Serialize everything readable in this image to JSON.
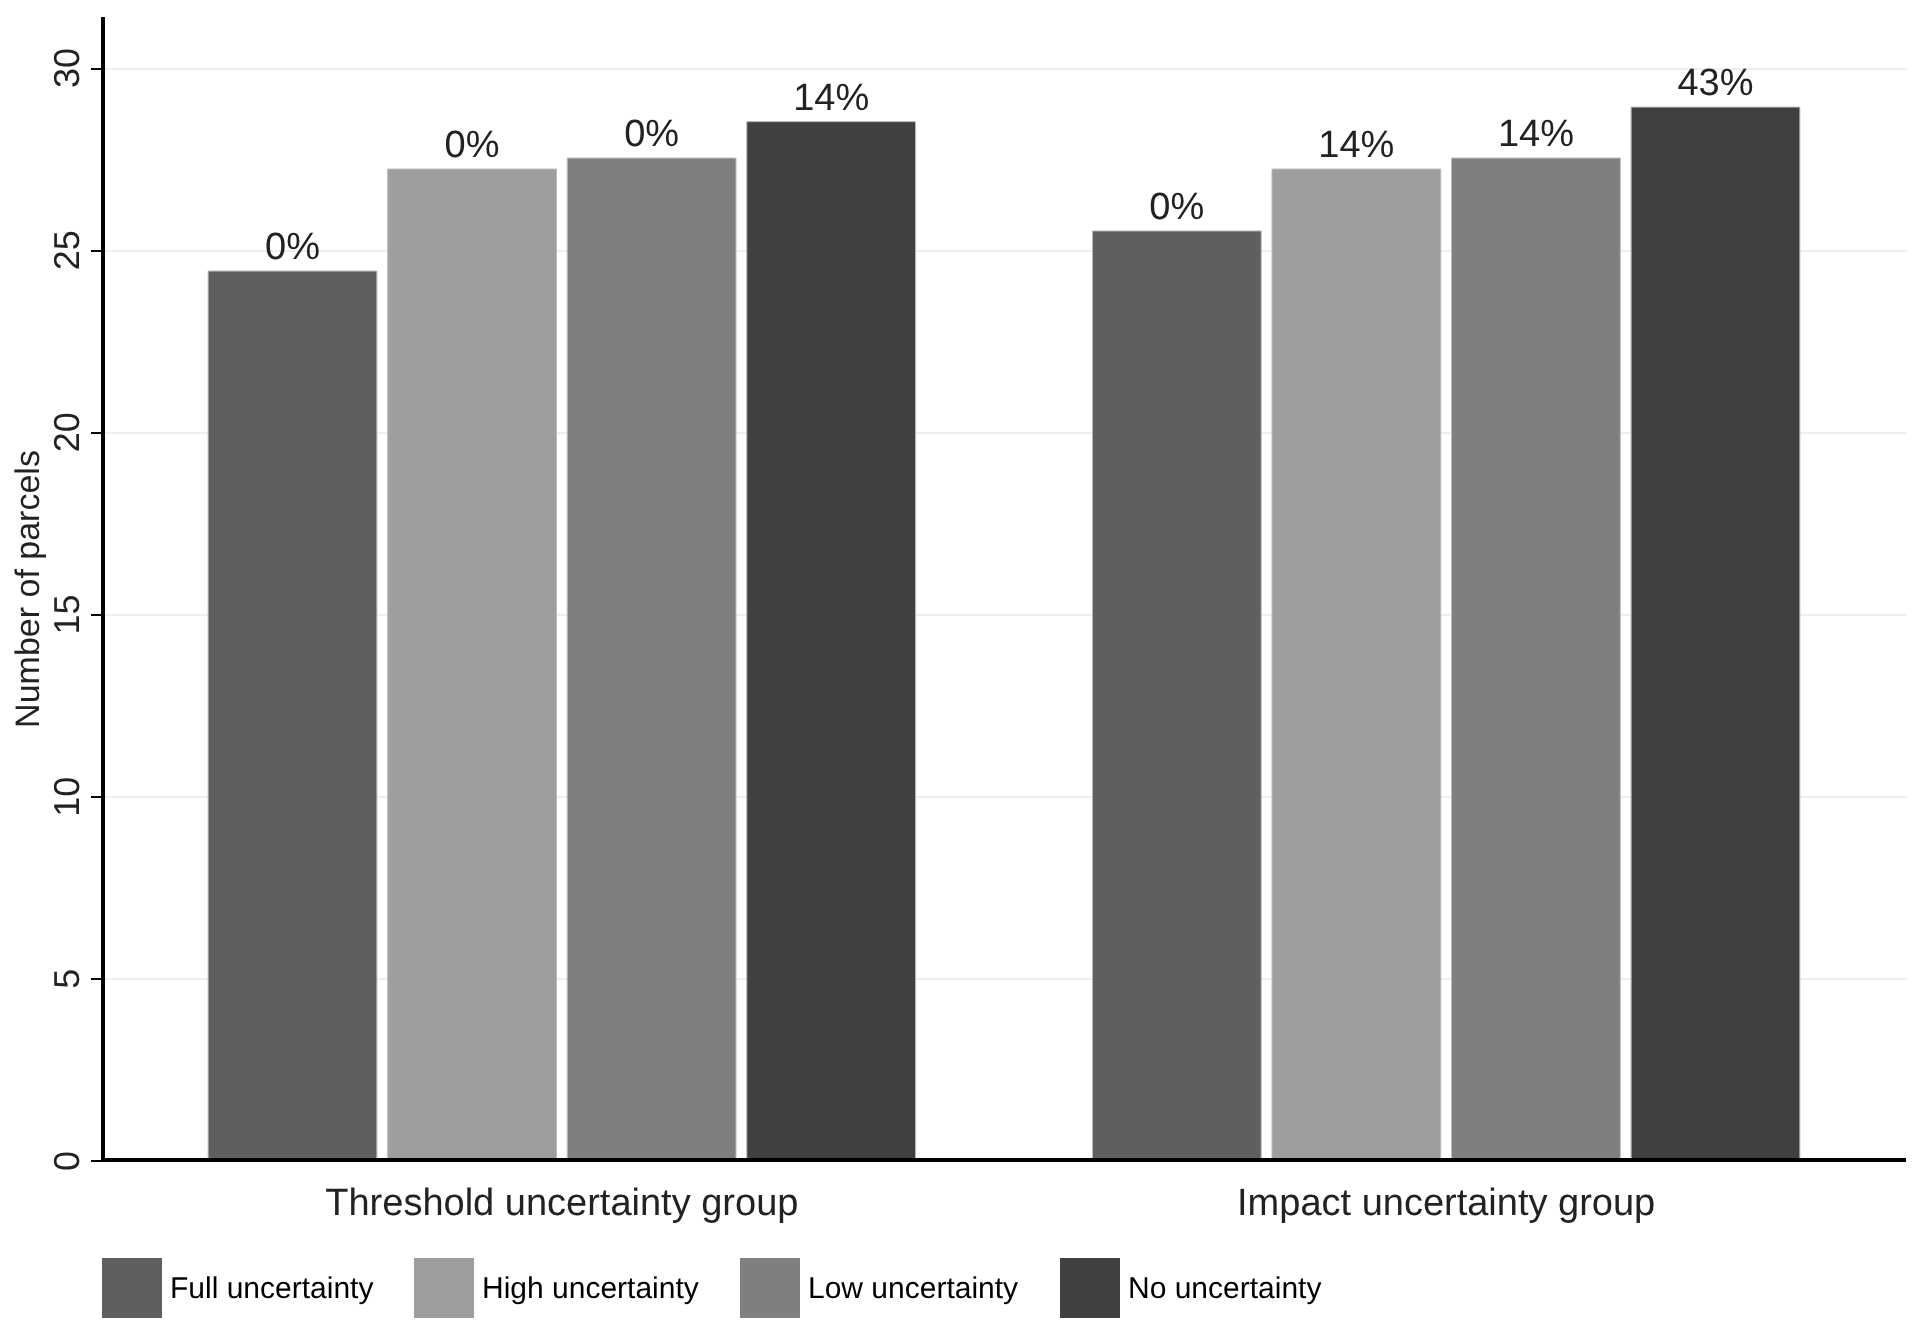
{
  "chart_data": {
    "type": "bar",
    "ylabel": "Number of parcels",
    "categories": [
      "Threshold uncertainty group",
      "Impact uncertainty group"
    ],
    "series": [
      {
        "name": "Full uncertainty",
        "color": "#5f5f5f",
        "values": [
          24.4,
          25.5
        ]
      },
      {
        "name": "High uncertainty",
        "color": "#9e9e9e",
        "values": [
          27.2,
          27.2
        ]
      },
      {
        "name": "Low uncertainty",
        "color": "#7f7f7f",
        "values": [
          27.5,
          27.5
        ]
      },
      {
        "name": "No uncertainty",
        "color": "#404040",
        "values": [
          28.5,
          28.9
        ]
      }
    ],
    "annotations": [
      "0%",
      "0%",
      "0%",
      "14%",
      "0%",
      "14%",
      "14%",
      "43%"
    ],
    "ylim": [
      0,
      31.4
    ],
    "yticks": [
      0,
      5,
      10,
      15,
      20,
      25,
      30
    ],
    "grid": "y",
    "legend": "bottom"
  }
}
